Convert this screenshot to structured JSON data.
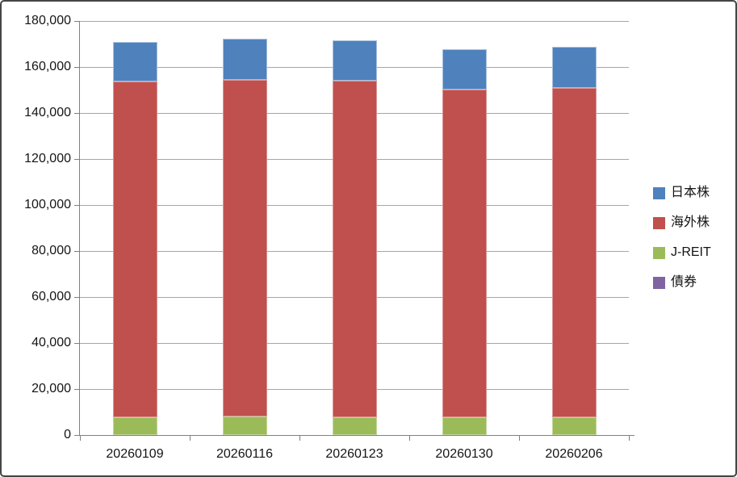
{
  "chart": {
    "background": "#FFFFFF",
    "frame_border_color": "#454545",
    "gridline_color": "#A6A6A6",
    "axis_line_color": "#808080",
    "label_color": "#141414"
  },
  "chart_data": {
    "type": "bar",
    "stacked": true,
    "title": "",
    "xlabel": "",
    "ylabel": "",
    "categories": [
      "20260109",
      "20260116",
      "20260123",
      "20260130",
      "20260206"
    ],
    "series": [
      {
        "name": "日本株",
        "slug": "japan-stocks",
        "color": "#4F81BD",
        "border_color": "#A7C0DE",
        "values": [
          17200,
          18000,
          17700,
          17500,
          18000
        ]
      },
      {
        "name": "海外株",
        "slug": "overseas-stocks",
        "color": "#C0504D",
        "border_color": "#D99694",
        "values": [
          145800,
          146300,
          146000,
          142300,
          143000
        ]
      },
      {
        "name": "J-REIT",
        "slug": "j-reit",
        "color": "#9BBB59",
        "border_color": "#C3D69B",
        "values": [
          7900,
          8100,
          7900,
          7900,
          7900
        ]
      },
      {
        "name": "債券",
        "slug": "bonds",
        "color": "#8064A2",
        "border_color": "#B3A2C7",
        "values": [
          0,
          0,
          0,
          0,
          0
        ]
      }
    ],
    "stack_order_bottom_to_top": [
      "債券",
      "J-REIT",
      "海外株",
      "日本株"
    ],
    "totals": [
      170900,
      172400,
      171600,
      167700,
      168900
    ],
    "ylim": [
      0,
      180000
    ],
    "yticks_top_to_bottom": [
      180000,
      160000,
      140000,
      120000,
      100000,
      80000,
      60000,
      40000,
      20000,
      0
    ],
    "ytick_labels_top_to_bottom": [
      "180,000",
      "160,000",
      "140,000",
      "120,000",
      "100,000",
      "80,000",
      "60,000",
      "40,000",
      "20,000",
      "0"
    ],
    "grid": true,
    "legend_position": "right"
  }
}
